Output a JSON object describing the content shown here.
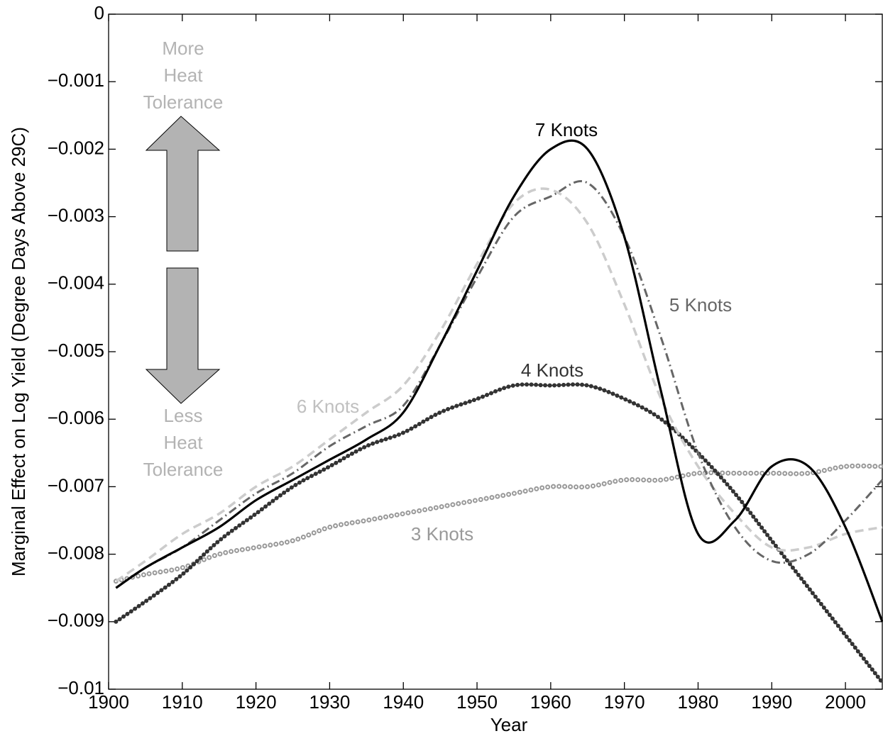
{
  "chart_data": {
    "type": "line",
    "xlabel": "Year",
    "ylabel": "Marginal Effect on Log Yield (Degree Days Above 29C)",
    "x": [
      1901,
      1905,
      1910,
      1915,
      1920,
      1925,
      1930,
      1935,
      1940,
      1945,
      1950,
      1955,
      1960,
      1965,
      1970,
      1975,
      1980,
      1985,
      1990,
      1995,
      2000,
      2005
    ],
    "series": [
      {
        "name": "7 Knots",
        "color": "#000000",
        "style": "solid",
        "values": [
          -0.0085,
          -0.0082,
          -0.0079,
          -0.0076,
          -0.0072,
          -0.0069,
          -0.0066,
          -0.0063,
          -0.0059,
          -0.0049,
          -0.0038,
          -0.0027,
          -0.002,
          -0.002,
          -0.0033,
          -0.0056,
          -0.0077,
          -0.0075,
          -0.0067,
          -0.0067,
          -0.0076,
          -0.009
        ]
      },
      {
        "name": "6 Knots",
        "color": "#cccccc",
        "style": "dashed",
        "values": [
          -0.0084,
          -0.0081,
          -0.0077,
          -0.0074,
          -0.007,
          -0.0067,
          -0.0063,
          -0.0059,
          -0.0055,
          -0.0047,
          -0.0037,
          -0.0028,
          -0.0026,
          -0.0031,
          -0.0043,
          -0.0057,
          -0.0067,
          -0.0074,
          -0.0079,
          -0.0079,
          -0.0077,
          -0.0076
        ]
      },
      {
        "name": "5 Knots",
        "color": "#666666",
        "style": "dashdot",
        "values": [
          -0.0085,
          -0.0082,
          -0.0079,
          -0.0075,
          -0.0071,
          -0.0068,
          -0.0064,
          -0.0061,
          -0.0058,
          -0.0049,
          -0.0039,
          -0.003,
          -0.0027,
          -0.0025,
          -0.0033,
          -0.0048,
          -0.0065,
          -0.0076,
          -0.0081,
          -0.008,
          -0.0075,
          -0.0069
        ]
      },
      {
        "name": "4 Knots",
        "color": "#333333",
        "style": "plus",
        "values": [
          -0.009,
          -0.0087,
          -0.0083,
          -0.0078,
          -0.0074,
          -0.007,
          -0.0067,
          -0.0064,
          -0.0062,
          -0.0059,
          -0.0057,
          -0.0055,
          -0.0055,
          -0.0055,
          -0.0057,
          -0.006,
          -0.0065,
          -0.0071,
          -0.0078,
          -0.0085,
          -0.0092,
          -0.0099
        ]
      },
      {
        "name": "3 Knots",
        "color": "#999999",
        "style": "circle",
        "values": [
          -0.0084,
          -0.0083,
          -0.0082,
          -0.008,
          -0.0079,
          -0.0078,
          -0.0076,
          -0.0075,
          -0.0074,
          -0.0073,
          -0.0072,
          -0.0071,
          -0.007,
          -0.007,
          -0.0069,
          -0.0069,
          -0.0068,
          -0.0068,
          -0.0068,
          -0.0068,
          -0.0067,
          -0.0067
        ]
      }
    ],
    "xlim": [
      1900,
      2005
    ],
    "ylim": [
      -0.01,
      0
    ],
    "xticks": [
      1900,
      1910,
      1920,
      1930,
      1940,
      1950,
      1960,
      1970,
      1980,
      1990,
      2000
    ],
    "yticks": [
      {
        "value": -0.01,
        "label": "−0.01"
      },
      {
        "value": -0.009,
        "label": "−0.009"
      },
      {
        "value": -0.008,
        "label": "−0.008"
      },
      {
        "value": -0.007,
        "label": "−0.007"
      },
      {
        "value": -0.006,
        "label": "−0.006"
      },
      {
        "value": -0.005,
        "label": "−0.005"
      },
      {
        "value": -0.004,
        "label": "−0.004"
      },
      {
        "value": -0.003,
        "label": "−0.003"
      },
      {
        "value": -0.002,
        "label": "−0.002"
      },
      {
        "value": -0.001,
        "label": "−0.001"
      },
      0
    ],
    "arrow_labels": [
      [
        "More",
        "Heat",
        "Tolerance"
      ],
      [
        "Less",
        "Heat",
        "Tolerance"
      ]
    ]
  }
}
